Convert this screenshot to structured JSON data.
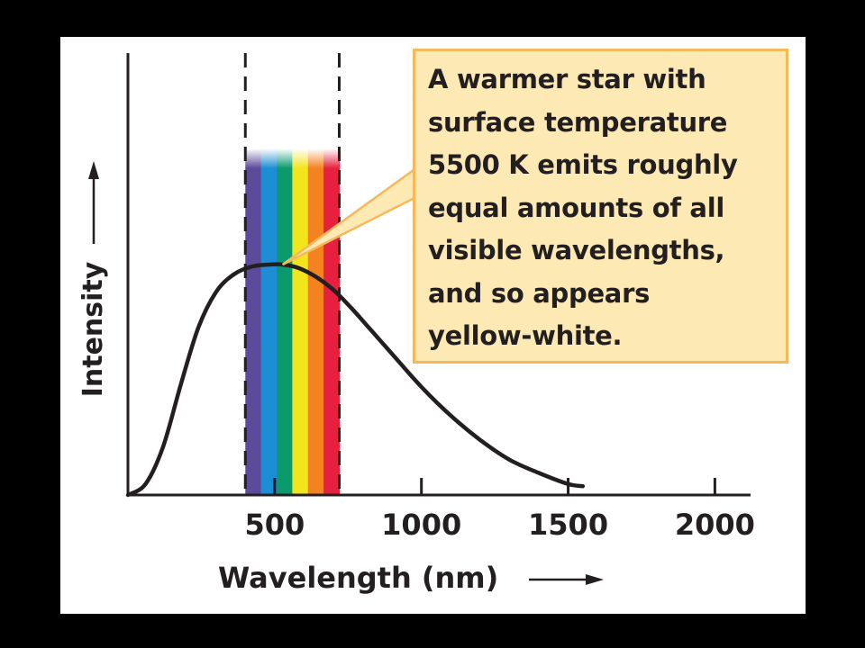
{
  "chart_data": {
    "type": "line",
    "xlabel": "Wavelength (nm)",
    "ylabel": "Intensity",
    "xlim": [
      0,
      2100
    ],
    "ylim": [
      0,
      1.2
    ],
    "x_ticks": [
      500,
      1000,
      1500,
      2000
    ],
    "x_tick_labels": [
      "500",
      "1000",
      "1500",
      "2000"
    ],
    "grid": false,
    "visible_band_nm": [
      400,
      720
    ],
    "spectrum_colors": [
      "#5c4a9a",
      "#1e8ed4",
      "#0a9a6e",
      "#f3e51c",
      "#f58220",
      "#e8203f"
    ],
    "series": [
      {
        "x": [
          0,
          60,
          120,
          180,
          240,
          300,
          360,
          420,
          480,
          527,
          580,
          640,
          700,
          760,
          820,
          900,
          1000,
          1100,
          1200,
          1300,
          1400,
          1500,
          1550
        ],
        "y": [
          0.0,
          0.05,
          0.22,
          0.5,
          0.76,
          0.92,
          1.0,
          1.035,
          1.045,
          1.045,
          1.03,
          0.99,
          0.93,
          0.85,
          0.76,
          0.64,
          0.49,
          0.36,
          0.25,
          0.16,
          0.1,
          0.05,
          0.04
        ],
        "color": "#231f20"
      }
    ],
    "annotation": {
      "lines": [
        "A warmer star with",
        "surface temperature",
        "5500 K emits roughly",
        "equal amounts of all",
        "visible wavelengths,",
        "and so appears",
        "yellow-white."
      ],
      "points_to_x": 527,
      "fill": "#fde9b4",
      "border": "#f5b95a"
    }
  }
}
